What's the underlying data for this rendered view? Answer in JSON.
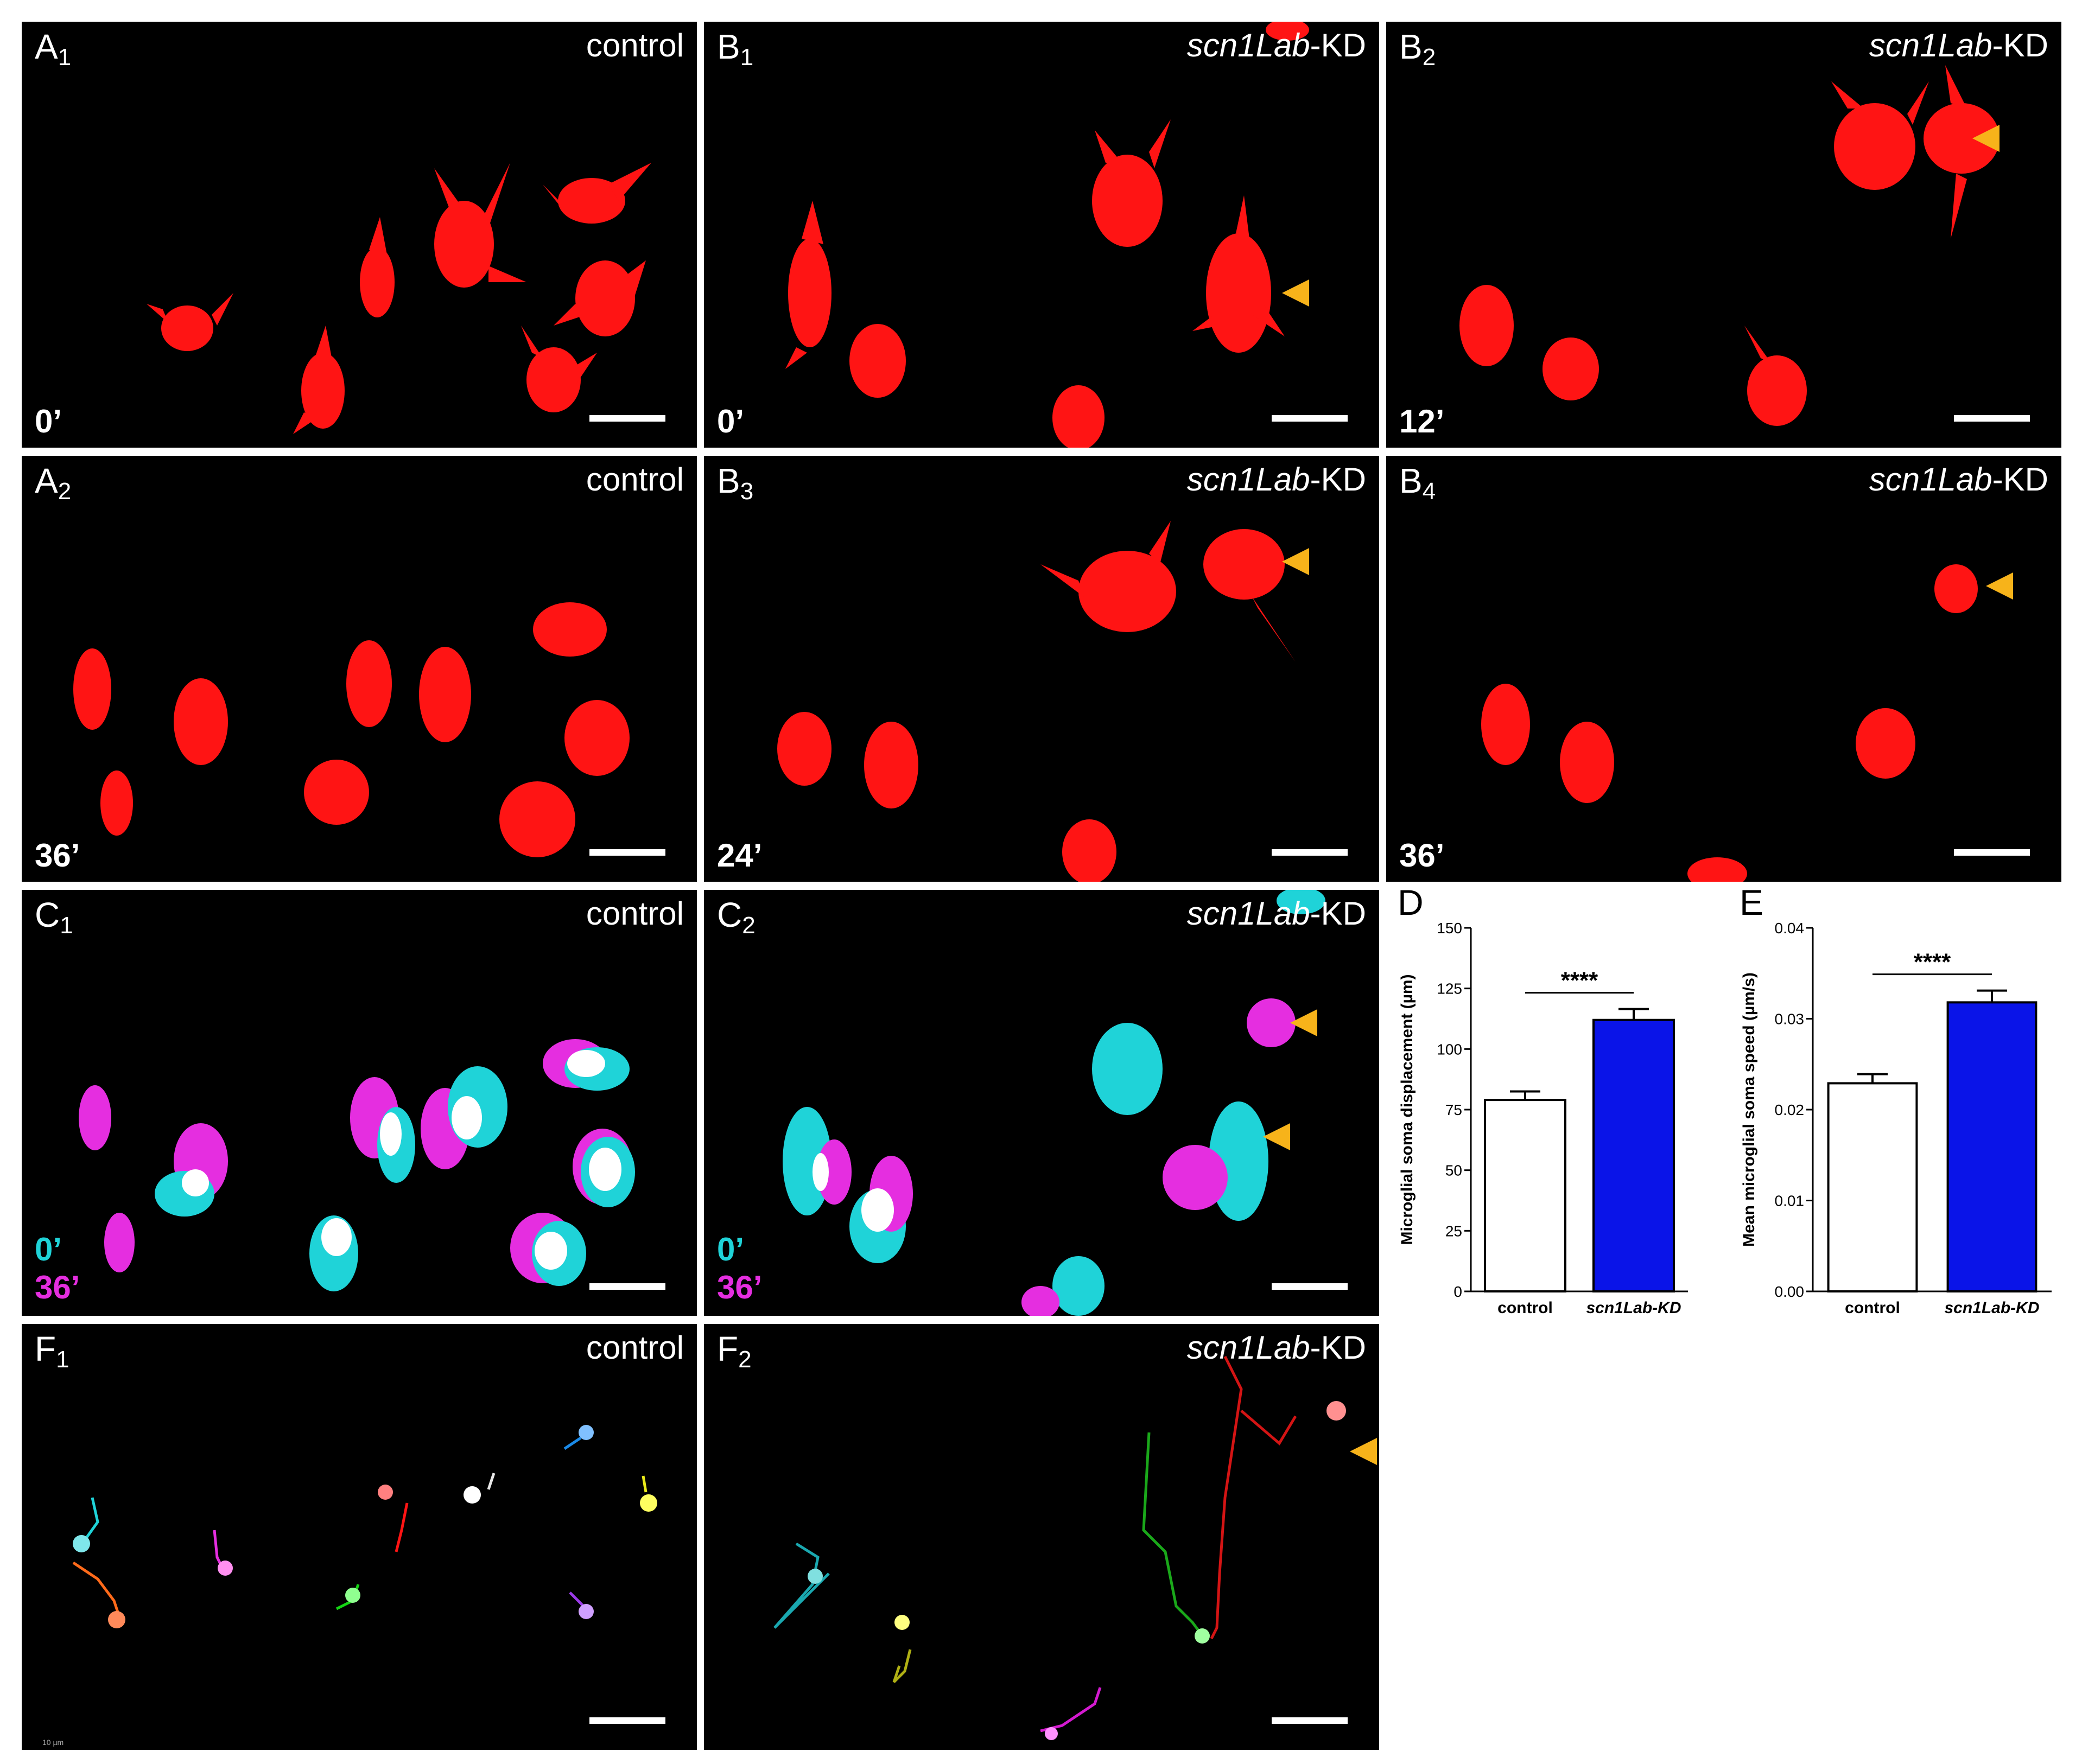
{
  "panels": {
    "A1": {
      "letter": "A",
      "sub": "1",
      "condition_plain": "control",
      "time": "0’"
    },
    "A2": {
      "letter": "A",
      "sub": "2",
      "condition_plain": "control",
      "time": "36’"
    },
    "B1": {
      "letter": "B",
      "sub": "1",
      "condition_italic": "scn1Lab",
      "condition_suffix": "-KD",
      "time": "0’"
    },
    "B2": {
      "letter": "B",
      "sub": "2",
      "condition_italic": "scn1Lab",
      "condition_suffix": "-KD",
      "time": "12’"
    },
    "B3": {
      "letter": "B",
      "sub": "3",
      "condition_italic": "scn1Lab",
      "condition_suffix": "-KD",
      "time": "24’"
    },
    "B4": {
      "letter": "B",
      "sub": "4",
      "condition_italic": "scn1Lab",
      "condition_suffix": "-KD",
      "time": "36’"
    },
    "C1": {
      "letter": "C",
      "sub": "1",
      "condition_plain": "control",
      "time_a": "0’",
      "time_b": "36’"
    },
    "C2": {
      "letter": "C",
      "sub": "2",
      "condition_italic": "scn1Lab",
      "condition_suffix": "-KD",
      "time_a": "0’",
      "time_b": "36’"
    },
    "F1": {
      "letter": "F",
      "sub": "1",
      "condition_plain": "control",
      "tiny_text": "10 µm"
    },
    "F2": {
      "letter": "F",
      "sub": "2",
      "condition_italic": "scn1Lab",
      "condition_suffix": "-KD"
    }
  },
  "colors": {
    "microglia": "#ff1414",
    "time0": "#1fd3d8",
    "time36": "#e52ee0",
    "overlap": "#ffffff",
    "arrowhead": "#f7b31a",
    "bar_control": "#ffffff",
    "bar_kd": "#0a14e8"
  },
  "chart_data": [
    {
      "panel_letter": "D",
      "type": "bar",
      "categories": [
        "control",
        "scn1Lab-KD"
      ],
      "values": [
        79,
        112
      ],
      "errors": [
        3.5,
        4.5
      ],
      "ylabel": "Microglial soma displacement (µm)",
      "ylim": [
        0,
        150
      ],
      "yticks": [
        "0",
        "25",
        "50",
        "75",
        "100",
        "125",
        "150"
      ],
      "significance": "****",
      "bar_colors": [
        "#ffffff",
        "#0a14e8"
      ]
    },
    {
      "panel_letter": "E",
      "type": "bar",
      "categories": [
        "control",
        "scn1Lab-KD"
      ],
      "values": [
        0.0229,
        0.0318
      ],
      "errors": [
        0.001,
        0.0013
      ],
      "ylabel": "Mean microglial soma speed (µm/s)",
      "ylim": [
        0,
        0.04
      ],
      "yticks": [
        "0.00",
        "0.01",
        "0.02",
        "0.03",
        "0.04"
      ],
      "significance": "****",
      "bar_colors": [
        "#ffffff",
        "#0a14e8"
      ]
    }
  ]
}
